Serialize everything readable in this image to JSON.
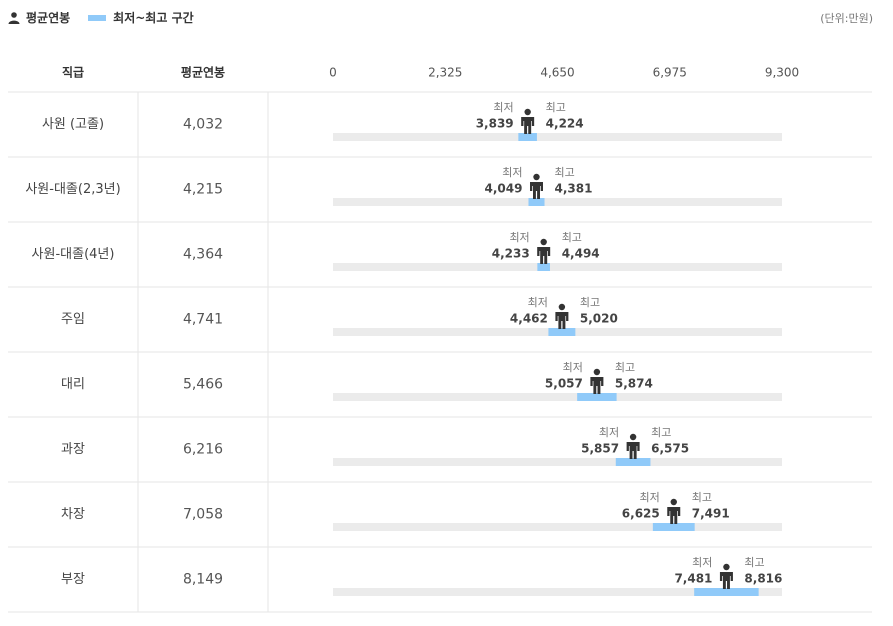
{
  "legend": {
    "avg_label": "평균연봉",
    "range_label": "최저~최고 구간",
    "avg_icon": "person-icon",
    "range_color": "#90caf9"
  },
  "unit": "(단위:만원)",
  "table": {
    "col_grade": "직급",
    "col_avg": "평균연봉"
  },
  "labels": {
    "min": "최저",
    "max": "최고"
  },
  "colors": {
    "track": "#ebebeb",
    "range": "#90caf9",
    "icon": "#333333"
  },
  "chart_data": {
    "type": "range-bar",
    "xlim": [
      0,
      9300
    ],
    "ticks": [
      "0",
      "2,325",
      "4,650",
      "6,975",
      "9,300"
    ],
    "tick_values": [
      0,
      2325,
      4650,
      6975,
      9300
    ],
    "rows": [
      {
        "grade": "사원 (고졸)",
        "avg": 4032,
        "avg_text": "4,032",
        "min": 3839,
        "min_text": "3,839",
        "max": 4224,
        "max_text": "4,224"
      },
      {
        "grade": "사원-대졸(2,3년)",
        "avg": 4215,
        "avg_text": "4,215",
        "min": 4049,
        "min_text": "4,049",
        "max": 4381,
        "max_text": "4,381"
      },
      {
        "grade": "사원-대졸(4년)",
        "avg": 4364,
        "avg_text": "4,364",
        "min": 4233,
        "min_text": "4,233",
        "max": 4494,
        "max_text": "4,494"
      },
      {
        "grade": "주임",
        "avg": 4741,
        "avg_text": "4,741",
        "min": 4462,
        "min_text": "4,462",
        "max": 5020,
        "max_text": "5,020"
      },
      {
        "grade": "대리",
        "avg": 5466,
        "avg_text": "5,466",
        "min": 5057,
        "min_text": "5,057",
        "max": 5874,
        "max_text": "5,874"
      },
      {
        "grade": "과장",
        "avg": 6216,
        "avg_text": "6,216",
        "min": 5857,
        "min_text": "5,857",
        "max": 6575,
        "max_text": "6,575"
      },
      {
        "grade": "차장",
        "avg": 7058,
        "avg_text": "7,058",
        "min": 6625,
        "min_text": "6,625",
        "max": 7491,
        "max_text": "7,491"
      },
      {
        "grade": "부장",
        "avg": 8149,
        "avg_text": "8,149",
        "min": 7481,
        "min_text": "7,481",
        "max": 8816,
        "max_text": "8,816"
      }
    ]
  }
}
